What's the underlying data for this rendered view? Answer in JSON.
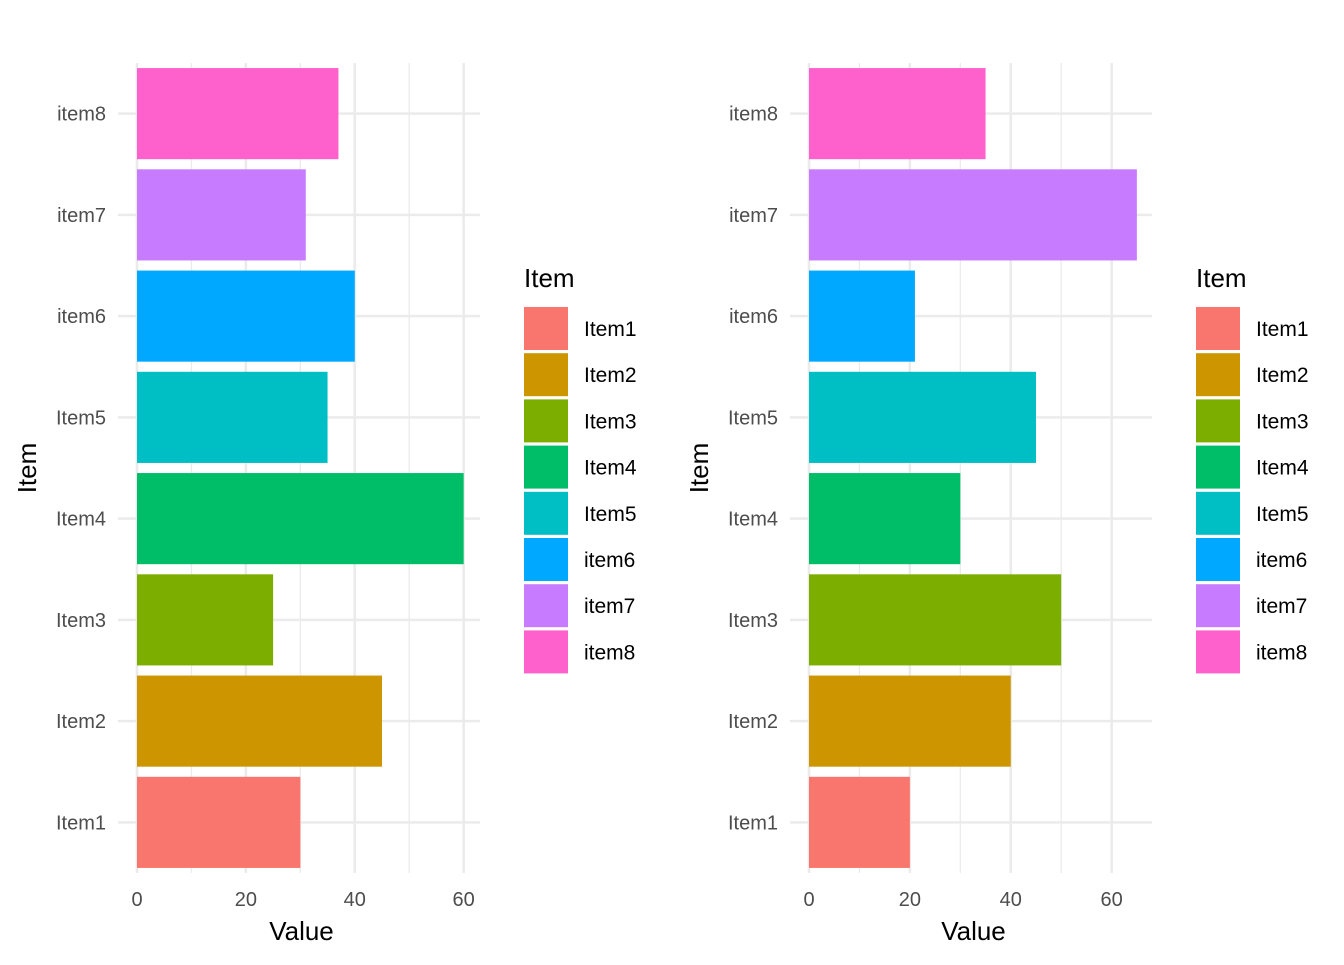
{
  "chart_data": [
    {
      "type": "bar",
      "orientation": "horizontal",
      "categories": [
        "Item1",
        "Item2",
        "Item3",
        "Item4",
        "Item5",
        "item6",
        "item7",
        "item8"
      ],
      "values": [
        30,
        45,
        25,
        60,
        35,
        40,
        31,
        37
      ],
      "xlabel": "Value",
      "ylabel": "Item",
      "xlim": [
        0,
        63
      ],
      "xticks": [
        "0",
        "20",
        "40",
        "60"
      ],
      "grid": true,
      "legend": {
        "title": "Item",
        "position": "right",
        "entries": [
          "Item1",
          "Item2",
          "Item3",
          "Item4",
          "Item5",
          "item6",
          "item7",
          "item8"
        ]
      }
    },
    {
      "type": "bar",
      "orientation": "horizontal",
      "categories": [
        "Item1",
        "Item2",
        "Item3",
        "Item4",
        "Item5",
        "item6",
        "item7",
        "item8"
      ],
      "values": [
        20,
        40,
        50,
        30,
        45,
        21,
        65,
        35
      ],
      "xlabel": "Value",
      "ylabel": "Item",
      "xlim": [
        0,
        68
      ],
      "xticks": [
        "0",
        "20",
        "40",
        "60"
      ],
      "grid": true,
      "legend": {
        "title": "Item",
        "position": "right",
        "entries": [
          "Item1",
          "Item2",
          "Item3",
          "Item4",
          "Item5",
          "item6",
          "item7",
          "item8"
        ]
      }
    }
  ],
  "colors": [
    "#F8766D",
    "#CD9600",
    "#7CAE00",
    "#00BE67",
    "#00BFC4",
    "#00A9FF",
    "#C77CFF",
    "#FF61CC"
  ]
}
